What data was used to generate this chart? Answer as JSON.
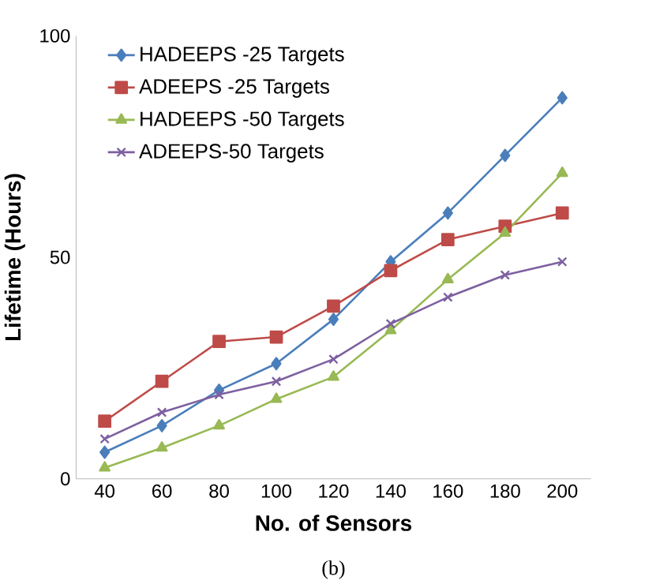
{
  "chart_data": {
    "type": "line",
    "xlabel": "No. of Sensors",
    "ylabel": "Lifetime (Hours)",
    "categories": [
      "40",
      "60",
      "80",
      "100",
      "120",
      "140",
      "160",
      "180",
      "200"
    ],
    "series": [
      {
        "name": "HADEEPS -25 Targets",
        "color": "#4a7ebb",
        "marker": "diamond",
        "values": [
          6,
          12,
          20,
          26,
          36,
          49,
          60,
          73,
          86
        ]
      },
      {
        "name": "ADEEPS -25 Targets",
        "color": "#be4b48",
        "marker": "square",
        "values": [
          13,
          22,
          31,
          32,
          39,
          47,
          54,
          57,
          60
        ]
      },
      {
        "name": "HADEEPS -50 Targets",
        "color": "#98b954",
        "marker": "triangle",
        "values": [
          2.5,
          7,
          12,
          18,
          23,
          33.5,
          45,
          55.5,
          69
        ]
      },
      {
        "name": "ADEEPS-50 Targets",
        "color": "#7d60a0",
        "marker": "cross",
        "values": [
          9,
          15,
          19,
          22,
          27,
          35,
          41,
          46,
          49
        ]
      }
    ],
    "ylim": [
      0,
      100
    ],
    "yticks": [
      0,
      50,
      100
    ],
    "grid": false,
    "legend": "top left",
    "annotations": [
      "(b)"
    ]
  }
}
